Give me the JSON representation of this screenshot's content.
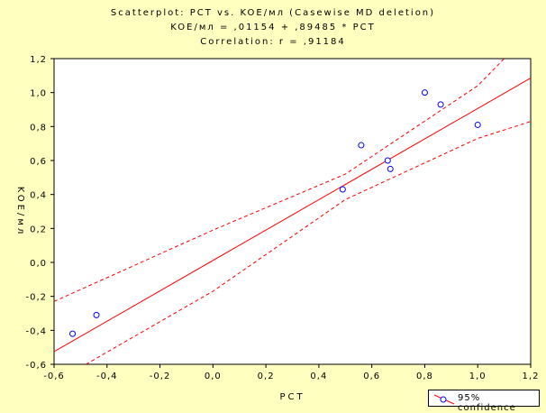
{
  "header": {
    "line1": "Scatterplot: PCT     vs. KOE/мл    (Casewise MD deletion)",
    "line2": "KOE/мл  = ,01154 + ,89485 * PCT",
    "line3": "Correlation: r = ,91184"
  },
  "legend": {
    "label": "95% confidence"
  },
  "colors": {
    "background": "#ffffc0",
    "points": "#0000ff",
    "regression": "#ff0000",
    "confidence": "#ff0000",
    "frame": "#000000"
  },
  "chart_data": {
    "type": "scatter",
    "title": "Scatterplot: PCT     vs. KOE/мл    (Casewise MD deletion)",
    "xlabel": "PCT",
    "ylabel": "KOE/мл",
    "xlim": [
      -0.6,
      1.2
    ],
    "ylim": [
      -0.6,
      1.2
    ],
    "x_ticks": [
      -0.6,
      -0.4,
      -0.2,
      0.0,
      0.2,
      0.4,
      0.6,
      0.8,
      1.0,
      1.2
    ],
    "y_ticks": [
      -0.6,
      -0.4,
      -0.2,
      0.0,
      0.2,
      0.4,
      0.6,
      0.8,
      1.0,
      1.2
    ],
    "x_tick_labels": [
      "-0,6",
      "-0,4",
      "-0,2",
      "0,0",
      "0,2",
      "0,4",
      "0,6",
      "0,8",
      "1,0",
      "1,2"
    ],
    "y_tick_labels": [
      "-0,6",
      "-0,4",
      "-0,2",
      "0,0",
      "0,2",
      "0,4",
      "0,6",
      "0,8",
      "1,0",
      "1,2"
    ],
    "grid": false,
    "legend_position": "bottom-right",
    "regression": {
      "intercept": 0.01154,
      "slope": 0.89485
    },
    "points": [
      {
        "x": -0.53,
        "y": -0.42
      },
      {
        "x": -0.44,
        "y": -0.31
      },
      {
        "x": 0.49,
        "y": 0.43
      },
      {
        "x": 0.56,
        "y": 0.69
      },
      {
        "x": 0.66,
        "y": 0.6
      },
      {
        "x": 0.67,
        "y": 0.55
      },
      {
        "x": 0.8,
        "y": 1.0
      },
      {
        "x": 0.86,
        "y": 0.93
      },
      {
        "x": 1.0,
        "y": 0.81
      }
    ],
    "confidence_upper": [
      {
        "x": -0.6,
        "y": -0.23
      },
      {
        "x": 0.0,
        "y": 0.19
      },
      {
        "x": 0.5,
        "y": 0.52
      },
      {
        "x": 1.0,
        "y": 1.04
      },
      {
        "x": 1.1,
        "y": 1.2
      }
    ],
    "confidence_lower": [
      {
        "x": -0.48,
        "y": -0.6
      },
      {
        "x": 0.0,
        "y": -0.17
      },
      {
        "x": 0.5,
        "y": 0.37
      },
      {
        "x": 1.0,
        "y": 0.73
      },
      {
        "x": 1.2,
        "y": 0.83
      }
    ]
  }
}
